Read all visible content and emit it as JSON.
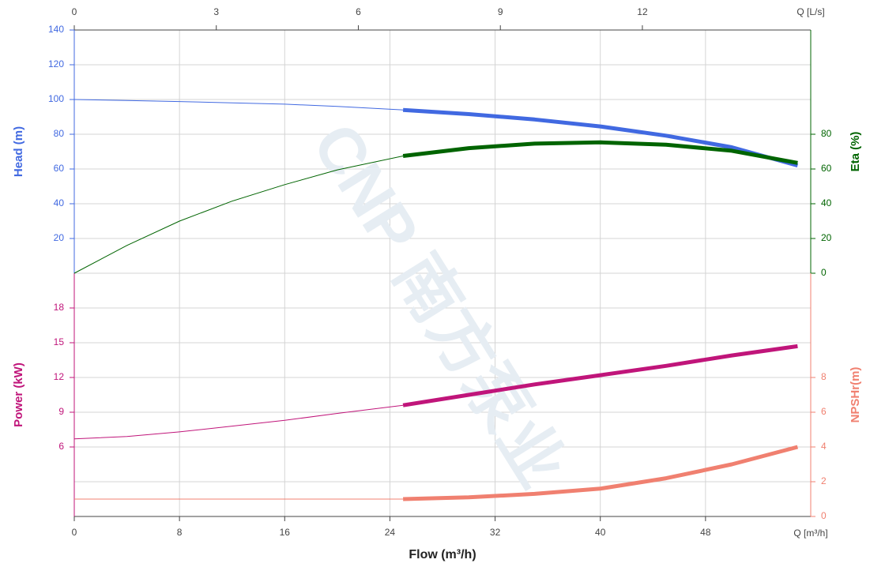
{
  "chart_data": {
    "type": "line",
    "watermark": "CNP 南方泵业",
    "grid": true,
    "x_axis": {
      "label": "Flow (m³/h)",
      "unit_label": "Q [m³/h]",
      "xlim": [
        0,
        56
      ],
      "xticks": [
        0,
        8,
        16,
        24,
        32,
        40,
        48
      ]
    },
    "x2_axis": {
      "unit_label": "Q [L/s]",
      "xlim": [
        0,
        15.556
      ],
      "xticks": [
        0,
        3,
        6,
        9,
        12
      ]
    },
    "y_axes": {
      "head": {
        "label": "Head (m)",
        "color": "#4169e1",
        "side": "left",
        "panel": "upper",
        "ylim": [
          0,
          140
        ],
        "yticks": [
          20,
          40,
          60,
          80,
          100,
          120,
          140
        ]
      },
      "eta": {
        "label": "Eta (%)",
        "color": "#006400",
        "side": "right",
        "panel": "upper",
        "ylim": [
          0,
          140
        ],
        "yticks": [
          0,
          20,
          40,
          60,
          80
        ]
      },
      "power": {
        "label": "Power (kW)",
        "color": "#c0157a",
        "side": "left",
        "panel": "lower",
        "ylim": [
          0,
          21
        ],
        "yticks": [
          6,
          9,
          12,
          15,
          18
        ]
      },
      "npsh": {
        "label": "NPSHr(m)",
        "color": "#f08070",
        "side": "right",
        "panel": "lower",
        "ylim": [
          0,
          14
        ],
        "yticks": [
          0,
          2,
          4,
          6,
          8
        ]
      }
    },
    "series": [
      {
        "axis": "head",
        "line_width": 1,
        "x": [
          0,
          4,
          8,
          12,
          16,
          20,
          25
        ],
        "values": [
          100,
          99.4,
          98.8,
          98.1,
          97.3,
          96,
          94
        ]
      },
      {
        "axis": "head",
        "line_width": 5,
        "x": [
          25,
          30,
          35,
          40,
          45,
          50,
          55
        ],
        "values": [
          94,
          91.6,
          88.5,
          84.5,
          79.2,
          72.5,
          62
        ]
      },
      {
        "axis": "eta",
        "line_width": 1,
        "x": [
          0,
          4,
          8,
          12,
          16,
          20,
          25
        ],
        "values": [
          0,
          16,
          30,
          41.5,
          51,
          59.5,
          67.5
        ]
      },
      {
        "axis": "eta",
        "line_width": 5,
        "x": [
          25,
          30,
          35,
          40,
          45,
          50,
          55
        ],
        "values": [
          67.5,
          72,
          74.6,
          75.3,
          74,
          70.5,
          63.5
        ]
      },
      {
        "axis": "power",
        "line_width": 1,
        "x": [
          0,
          4,
          8,
          12,
          16,
          20,
          25
        ],
        "values": [
          6.7,
          6.9,
          7.3,
          7.8,
          8.3,
          8.9,
          9.6
        ]
      },
      {
        "axis": "power",
        "line_width": 5,
        "x": [
          25,
          30,
          35,
          40,
          45,
          50,
          55
        ],
        "values": [
          9.6,
          10.5,
          11.4,
          12.2,
          13,
          13.9,
          14.7
        ]
      },
      {
        "axis": "npsh",
        "line_width": 1,
        "x": [
          0,
          25
        ],
        "values": [
          1,
          1
        ]
      },
      {
        "axis": "npsh",
        "line_width": 5,
        "x": [
          25,
          30,
          35,
          40,
          45,
          50,
          55
        ],
        "values": [
          1,
          1.1,
          1.3,
          1.6,
          2.2,
          3,
          4
        ]
      }
    ]
  }
}
